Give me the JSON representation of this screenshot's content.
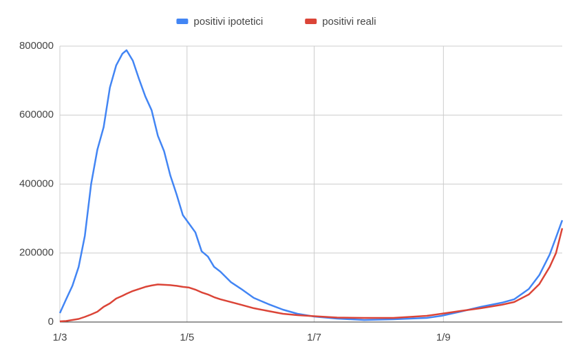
{
  "chart_data": {
    "type": "line",
    "x": [
      0,
      3,
      6,
      9,
      12,
      15,
      18,
      21,
      24,
      27,
      30,
      32,
      35,
      38,
      41,
      44,
      47,
      50,
      53,
      56,
      59,
      62,
      65,
      68,
      71,
      74,
      77,
      82,
      87,
      93,
      100,
      107,
      114,
      122,
      133,
      146,
      160,
      176,
      183,
      192,
      202,
      212,
      218,
      225,
      230,
      235,
      238,
      241
    ],
    "xlim": [
      0,
      241
    ],
    "xticks": [
      {
        "value": 0,
        "label": "1/3"
      },
      {
        "value": 61,
        "label": "1/5"
      },
      {
        "value": 122,
        "label": "1/7"
      },
      {
        "value": 184,
        "label": "1/9"
      }
    ],
    "ylim": [
      0,
      800000
    ],
    "yticks": [
      0,
      200000,
      400000,
      600000,
      800000
    ],
    "grid": true,
    "legend": "top",
    "series": [
      {
        "name": "positivi ipotetici",
        "color": "#4285f4",
        "values": [
          26000,
          66000,
          105000,
          160000,
          250000,
          400000,
          500000,
          565000,
          680000,
          744000,
          778000,
          788000,
          758000,
          704000,
          654000,
          614000,
          540000,
          495000,
          425000,
          370000,
          310000,
          285000,
          260000,
          205000,
          190000,
          160000,
          146000,
          116000,
          96000,
          70000,
          52000,
          36000,
          24000,
          16000,
          10000,
          6000,
          8000,
          12000,
          18000,
          30000,
          44000,
          56000,
          66000,
          96000,
          136000,
          196000,
          245000,
          295000
        ]
      },
      {
        "name": "positivi reali",
        "color": "#db4437",
        "values": [
          2000,
          3000,
          6000,
          9000,
          15000,
          22000,
          30000,
          44000,
          54000,
          68000,
          76000,
          82000,
          90000,
          96000,
          102000,
          106000,
          109000,
          108000,
          107000,
          105000,
          102000,
          100000,
          94000,
          86000,
          80000,
          72000,
          66000,
          58000,
          50000,
          40000,
          32000,
          24000,
          20000,
          17000,
          13000,
          12000,
          12000,
          18000,
          24000,
          32000,
          40000,
          50000,
          58000,
          80000,
          110000,
          160000,
          200000,
          272000
        ]
      }
    ]
  }
}
